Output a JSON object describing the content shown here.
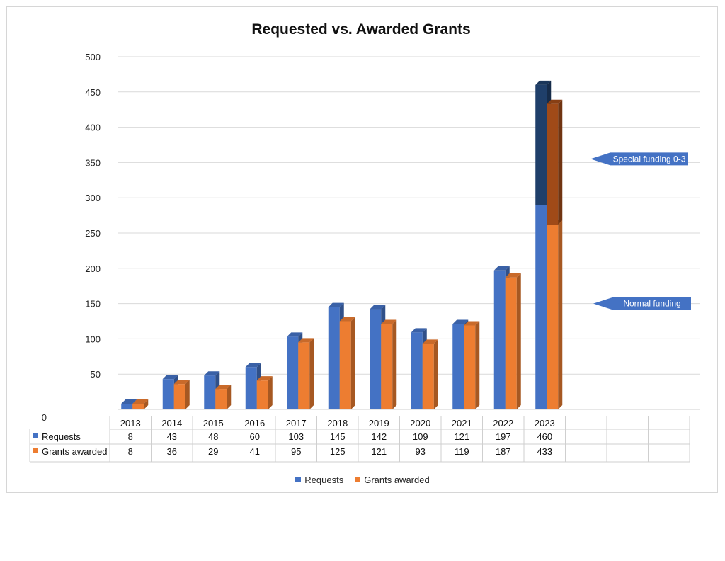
{
  "chart_data": {
    "type": "bar",
    "title": "Requested vs. Awarded Grants",
    "categories": [
      "2013",
      "2014",
      "2015",
      "2016",
      "2017",
      "2018",
      "2019",
      "2020",
      "2021",
      "2022",
      "2023"
    ],
    "series": [
      {
        "name": "Requests",
        "values": [
          8,
          43,
          48,
          60,
          103,
          145,
          142,
          109,
          121,
          197,
          460
        ],
        "color": "#4472C4"
      },
      {
        "name": "Grants awarded",
        "values": [
          8,
          36,
          29,
          41,
          95,
          125,
          121,
          93,
          119,
          187,
          433
        ],
        "color": "#ED7D31"
      }
    ],
    "segmented_last_bar": {
      "Requests": {
        "normal": 290,
        "special": 170,
        "special_color": "#1F3F6A"
      },
      "Grants awarded": {
        "normal": 262,
        "special": 171,
        "special_color": "#A04A18"
      }
    },
    "ylim": [
      0,
      500
    ],
    "yticks": [
      0,
      50,
      100,
      150,
      200,
      250,
      300,
      350,
      400,
      450,
      500
    ],
    "grid": true,
    "legend": "bottom",
    "annotations": [
      {
        "text": "Special funding 0-3",
        "y": 355
      },
      {
        "text": "Normal funding",
        "y": 150
      }
    ],
    "data_table": true
  }
}
